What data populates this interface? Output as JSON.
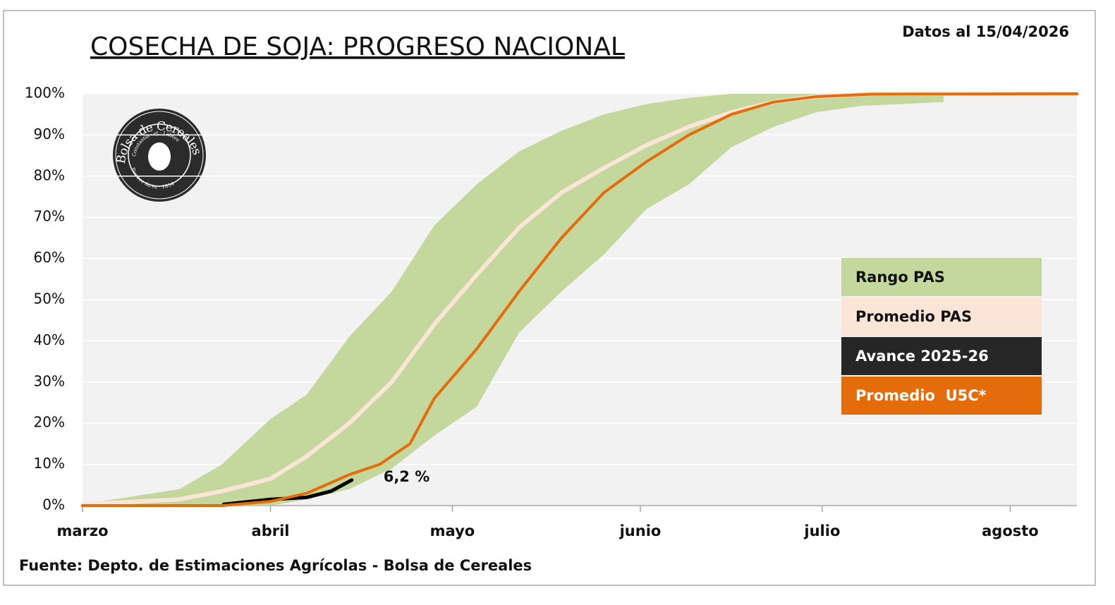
{
  "chart_data": {
    "type": "line",
    "title": "COSECHA DE SOJA: PROGRESO NACIONAL",
    "subtitle": "Datos al 15/04/2026",
    "source": "Fuente: Depto. de Estimaciones Agrícolas - Bolsa de Cereales",
    "logo": {
      "name": "Bolsa de Cereales",
      "motto": "Constantia · et · Labore",
      "place": "Buenos Aires · 1854"
    },
    "xlim": [
      0,
      164
    ],
    "xticks": [
      {
        "value": 0,
        "label": "marzo"
      },
      {
        "value": 31,
        "label": "abril"
      },
      {
        "value": 61,
        "label": "mayo"
      },
      {
        "value": 92,
        "label": "junio"
      },
      {
        "value": 122,
        "label": "julio"
      },
      {
        "value": 153,
        "label": "agosto"
      }
    ],
    "ylim": [
      0,
      100
    ],
    "yticks": [
      {
        "value": 0,
        "label": "0%"
      },
      {
        "value": 10,
        "label": "10%"
      },
      {
        "value": 20,
        "label": "20%"
      },
      {
        "value": 30,
        "label": "30%"
      },
      {
        "value": 40,
        "label": "40%"
      },
      {
        "value": 50,
        "label": "50%"
      },
      {
        "value": 60,
        "label": "60%"
      },
      {
        "value": 70,
        "label": "70%"
      },
      {
        "value": 80,
        "label": "80%"
      },
      {
        "value": 90,
        "label": "90%"
      },
      {
        "value": 100,
        "label": "100%"
      }
    ],
    "grid": true,
    "legend": "right",
    "series": [
      {
        "name": "Rango PAS",
        "type": "band",
        "color": "#c4d79d",
        "x": [
          0,
          16,
          23,
          31,
          37,
          44,
          51,
          58,
          65,
          72,
          79,
          86,
          93,
          100,
          107,
          114,
          121,
          128,
          142
        ],
        "lower": [
          0,
          0,
          0,
          0,
          1.5,
          4,
          9,
          17,
          24,
          42,
          52,
          61,
          72,
          78,
          87,
          92,
          95.5,
          97,
          98
        ],
        "upper": [
          0.3,
          4,
          10,
          21,
          27,
          41,
          52,
          68,
          78,
          86,
          91,
          95,
          97.5,
          99,
          100,
          100,
          100,
          100,
          100
        ]
      },
      {
        "name": "Promedio PAS",
        "type": "line",
        "color": "#fbe5d6",
        "width": 6,
        "x": [
          0,
          16,
          23,
          31,
          37,
          44,
          51,
          58,
          65,
          72,
          79,
          86,
          93,
          100,
          107,
          114,
          121,
          130,
          164
        ],
        "values": [
          0.3,
          1.5,
          3.5,
          6.5,
          12,
          20,
          30,
          44,
          56,
          67.5,
          76,
          82,
          87.5,
          92,
          95.5,
          98,
          99.3,
          100,
          100
        ]
      },
      {
        "name": "Avance 2025-26",
        "type": "line",
        "color": "#000000",
        "legend_color": "#262626",
        "width": 5,
        "x": [
          23.3,
          31,
          37,
          41,
          44.4
        ],
        "values": [
          0.3,
          1.5,
          2,
          3.5,
          6.2
        ],
        "value_labels": [
          null,
          null,
          null,
          null,
          "6,2 %"
        ]
      },
      {
        "name": "Promedio  U5C*",
        "type": "line",
        "color": "#e46c0a",
        "width": 4,
        "x": [
          0,
          23,
          31,
          37,
          44,
          49,
          54,
          58,
          65,
          72,
          79,
          86,
          93,
          100,
          107,
          114,
          121,
          130,
          164
        ],
        "values": [
          0,
          0,
          1,
          3,
          7.5,
          10,
          15,
          26,
          38,
          52,
          65,
          76,
          83.5,
          90,
          95,
          98,
          99.3,
          99.9,
          100
        ]
      }
    ]
  }
}
